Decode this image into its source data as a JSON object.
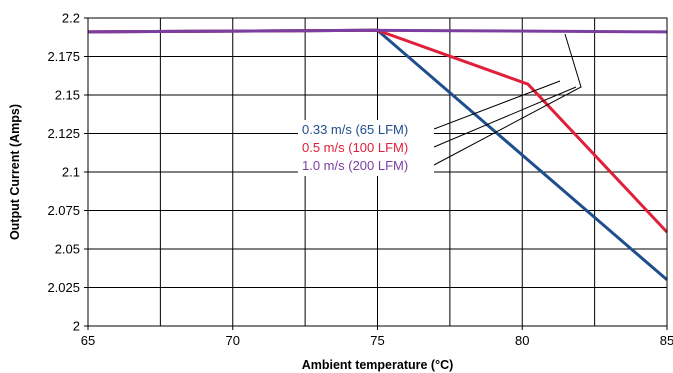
{
  "chart_data": {
    "type": "line",
    "xlabel": "Ambient temperature (°C)",
    "ylabel": "Output Current (Amps)",
    "xlim": [
      65,
      85
    ],
    "ylim": [
      2,
      2.2
    ],
    "x_ticks": [
      65,
      70,
      75,
      80,
      85
    ],
    "x_tick_labels": [
      "65",
      "70",
      "75",
      "80",
      "85"
    ],
    "y_ticks": [
      2,
      2.025,
      2.05,
      2.075,
      2.1,
      2.125,
      2.15,
      2.175,
      2.2
    ],
    "y_tick_labels": [
      "2",
      "2.025",
      "2.05",
      "2.075",
      "2.1",
      "2.125",
      "2.15",
      "2.175",
      "2.2"
    ],
    "grid": true,
    "legend_placement": "center-right annotation",
    "series": [
      {
        "name": "0.33 m/s (65 LFM)",
        "color": "#1f4e8c",
        "points": [
          [
            65,
            2.191
          ],
          [
            75,
            2.192
          ],
          [
            85,
            2.03
          ]
        ]
      },
      {
        "name": "0.5 m/s (100 LFM)",
        "color": "#e0203a",
        "points": [
          [
            65,
            2.191
          ],
          [
            75,
            2.192
          ],
          [
            80.2,
            2.157
          ],
          [
            85,
            2.061
          ]
        ]
      },
      {
        "name": "1.0 m/s (200 LFM)",
        "color": "#7b3fa0",
        "points": [
          [
            65,
            2.191
          ],
          [
            75,
            2.192
          ],
          [
            85,
            2.191
          ]
        ]
      }
    ]
  }
}
